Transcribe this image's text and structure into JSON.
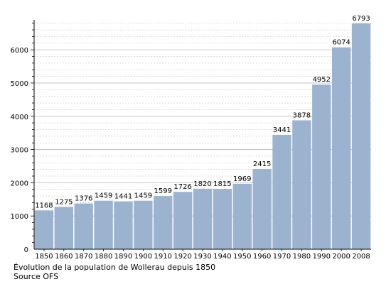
{
  "chart_data": {
    "type": "bar",
    "categories": [
      "1850",
      "1860",
      "1870",
      "1880",
      "1890",
      "1900",
      "1910",
      "1920",
      "1930",
      "1940",
      "1950",
      "1960",
      "1970",
      "1980",
      "1990",
      "2000",
      "2008"
    ],
    "values": [
      1168,
      1275,
      1376,
      1459,
      1441,
      1459,
      1599,
      1726,
      1820,
      1815,
      1969,
      2415,
      3441,
      3878,
      4952,
      6074,
      6793
    ],
    "value_labels": [
      "1168",
      "1275",
      "1376",
      "1459",
      "1441",
      "1459",
      "1599",
      "1726",
      "1820",
      "1815",
      "1969",
      "2415",
      "3441",
      "3878",
      "4952",
      "6074",
      "6793"
    ],
    "title": "",
    "xlabel": "",
    "ylabel": "",
    "ylim": [
      0,
      6900
    ],
    "yticks": [
      0,
      1000,
      2000,
      3000,
      4000,
      5000,
      6000
    ],
    "ytick_labels": [
      "0",
      "1000",
      "2000",
      "3000",
      "4000",
      "5000",
      "6000"
    ],
    "grid": true,
    "bar_color": "#9bb3cf",
    "grid_color": "#b8b8b8"
  },
  "caption": {
    "line1": "Évolution de la population de Wollerau depuis 1850",
    "line2": "Source OFS"
  }
}
